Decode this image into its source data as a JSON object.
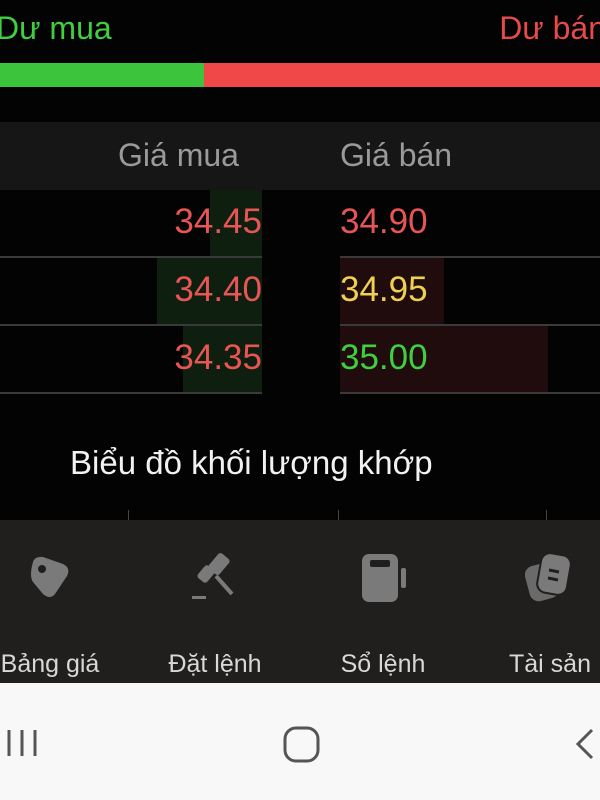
{
  "balance": {
    "buy_label": "Dư mua",
    "sell_label": "Dư bán",
    "buy_fraction": 0.34
  },
  "orderbook": {
    "headers": {
      "bid": "Giá mua",
      "ask": "Giá bán"
    },
    "rows": [
      {
        "bid": "34.45",
        "bid_color": "#e85555",
        "bid_depth": 0.2,
        "ask": "34.90",
        "ask_color": "#e85555",
        "ask_depth": 0
      },
      {
        "bid": "34.40",
        "bid_color": "#e85555",
        "bid_depth": 0.4,
        "ask": "34.95",
        "ask_color": "#f0d050",
        "ask_depth": 0.4
      },
      {
        "bid": "34.35",
        "bid_color": "#e85555",
        "bid_depth": 0.3,
        "ask": "35.00",
        "ask_color": "#3fd03f",
        "ask_depth": 0.8
      }
    ]
  },
  "chart": {
    "title": "Biểu đồ khối lượng khớp"
  },
  "nav": {
    "items": [
      {
        "label": "Bảng giá",
        "icon": "tag-icon"
      },
      {
        "label": "Đặt lệnh",
        "icon": "gavel-icon"
      },
      {
        "label": "Sổ lệnh",
        "icon": "order-book-icon"
      },
      {
        "label": "Tài sản",
        "icon": "assets-icon"
      }
    ]
  },
  "system_nav": {
    "icons": [
      "recent-apps-icon",
      "home-icon",
      "back-icon"
    ]
  }
}
